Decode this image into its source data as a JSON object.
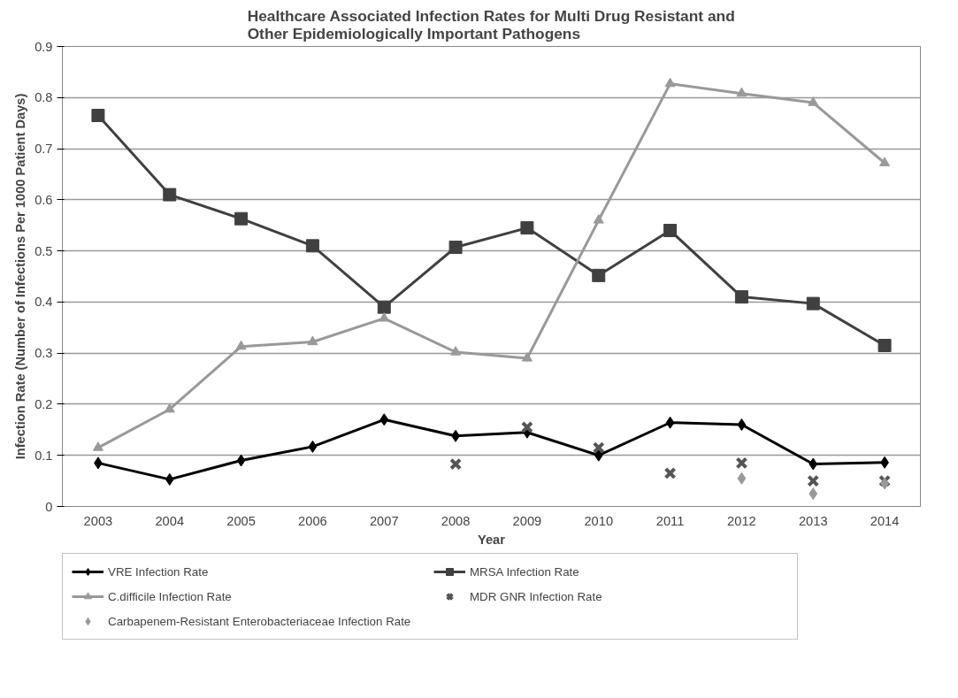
{
  "chart_data": {
    "type": "line",
    "title": "Healthcare Associated Infection Rates for Multi Drug Resistant and\nOther Epidemiologically Important Pathogens",
    "xlabel": "Year",
    "ylabel": "Infection Rate (Number of Infections Per 1000 Patient Days)",
    "categories": [
      "2003",
      "2004",
      "2005",
      "2006",
      "2007",
      "2008",
      "2009",
      "2010",
      "2011",
      "2012",
      "2013",
      "2014"
    ],
    "ylim": [
      0,
      0.9
    ],
    "yticks": [
      {
        "value": 0,
        "label": "0"
      },
      0.1,
      0.2,
      0.3,
      0.4,
      0.5,
      0.6,
      0.7,
      0.8,
      0.9
    ],
    "grid": "y",
    "legend": "bottom",
    "series": [
      {
        "name": "VRE Infection Rate",
        "marker": "diamond",
        "color": "#000000",
        "values": [
          0.085,
          0.053,
          0.09,
          0.117,
          0.17,
          0.138,
          0.145,
          0.1,
          0.164,
          0.16,
          0.083,
          0.086
        ]
      },
      {
        "name": "MRSA Infection Rate",
        "marker": "square",
        "color": "#404040",
        "values": [
          0.765,
          0.61,
          0.563,
          0.51,
          0.39,
          0.507,
          0.545,
          0.452,
          0.54,
          0.41,
          0.397,
          0.315
        ]
      },
      {
        "name": "C.difficile Infection Rate",
        "marker": "triangle",
        "color": "#999999",
        "values": [
          0.115,
          0.19,
          0.313,
          0.322,
          0.368,
          0.302,
          0.29,
          0.56,
          0.827,
          0.808,
          0.79,
          0.672
        ]
      },
      {
        "name": "MDR GNR Infection Rate",
        "type": "scatter",
        "marker": "cross",
        "color": "#555555",
        "values": [
          null,
          null,
          null,
          null,
          null,
          0.083,
          0.155,
          0.115,
          0.065,
          0.085,
          0.05,
          0.05
        ]
      },
      {
        "name": "Carbapenem-Resistant Enterobacteriaceae Infection Rate",
        "type": "scatter",
        "marker": "diamond",
        "color": "#999999",
        "values": [
          null,
          null,
          null,
          null,
          null,
          null,
          null,
          null,
          null,
          0.055,
          0.025,
          0.045
        ]
      }
    ]
  }
}
